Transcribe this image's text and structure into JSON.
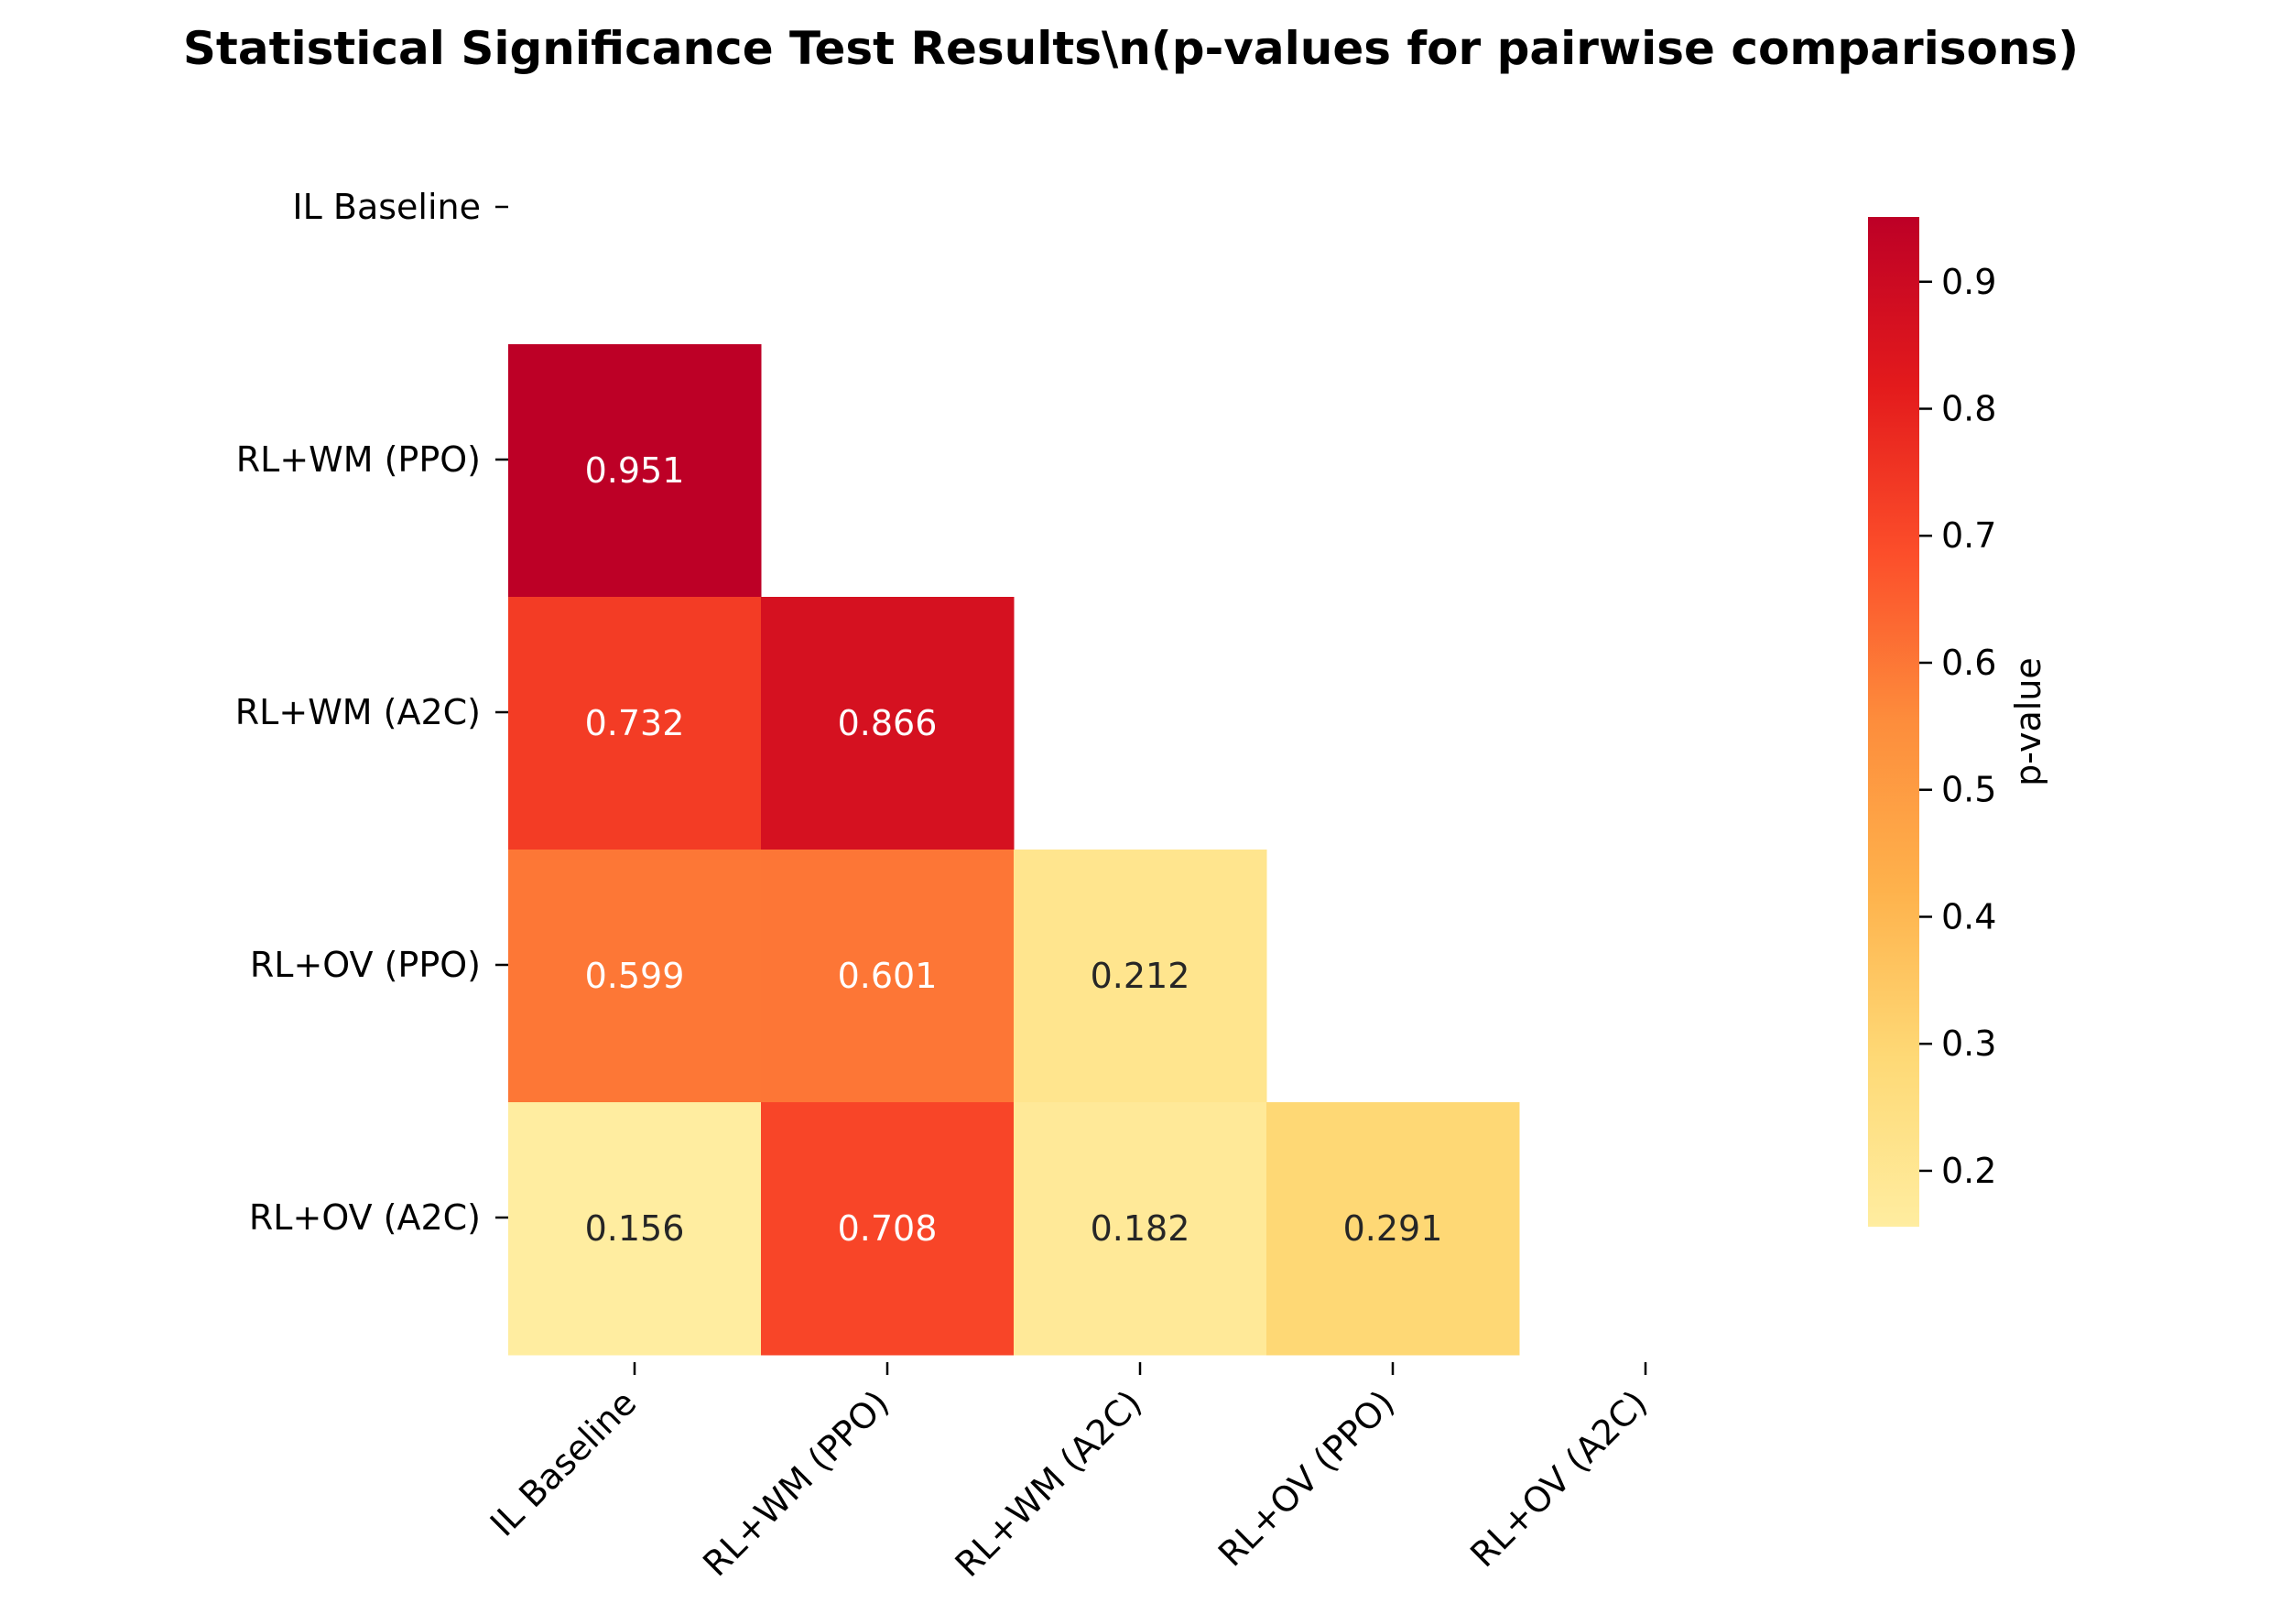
{
  "chart_data": {
    "type": "heatmap",
    "title": "Statistical Significance Test Results\\n(p-values for pairwise comparisons)",
    "row_labels": [
      "IL Baseline",
      "RL+WM (PPO)",
      "RL+WM (A2C)",
      "RL+OV (PPO)",
      "RL+OV (A2C)"
    ],
    "col_labels": [
      "IL Baseline",
      "RL+WM (PPO)",
      "RL+WM (A2C)",
      "RL+OV (PPO)",
      "RL+OV (A2C)"
    ],
    "values": [
      [
        null,
        null,
        null,
        null,
        null
      ],
      [
        0.951,
        null,
        null,
        null,
        null
      ],
      [
        0.732,
        0.866,
        null,
        null,
        null
      ],
      [
        0.599,
        0.601,
        0.212,
        null,
        null
      ],
      [
        0.156,
        0.708,
        0.182,
        0.291,
        null
      ]
    ],
    "value_labels": [
      [
        null,
        null,
        null,
        null,
        null
      ],
      [
        "0.951",
        null,
        null,
        null,
        null
      ],
      [
        "0.732",
        "0.866",
        null,
        null,
        null
      ],
      [
        "0.599",
        "0.601",
        "0.212",
        null,
        null
      ],
      [
        "0.156",
        "0.708",
        "0.182",
        "0.291",
        null
      ]
    ],
    "colormap": "YlOrRd",
    "colormap_stops": [
      "#ffeda0",
      "#fed976",
      "#feb24c",
      "#fd8d3c",
      "#fc4e2a",
      "#e31a1c",
      "#bd0026"
    ],
    "colorbar": {
      "label": "p-value",
      "range": [
        0.156,
        0.951
      ],
      "ticks": [
        0.2,
        0.3,
        0.4,
        0.5,
        0.6,
        0.7,
        0.8,
        0.9
      ],
      "tick_labels": [
        "0.2",
        "0.3",
        "0.4",
        "0.5",
        "0.6",
        "0.7",
        "0.8",
        "0.9"
      ]
    },
    "mask": "upper-triangle-including-diagonal",
    "text_colors": {
      "dark_cell": "#ffffff",
      "light_cell": "#262626"
    }
  }
}
